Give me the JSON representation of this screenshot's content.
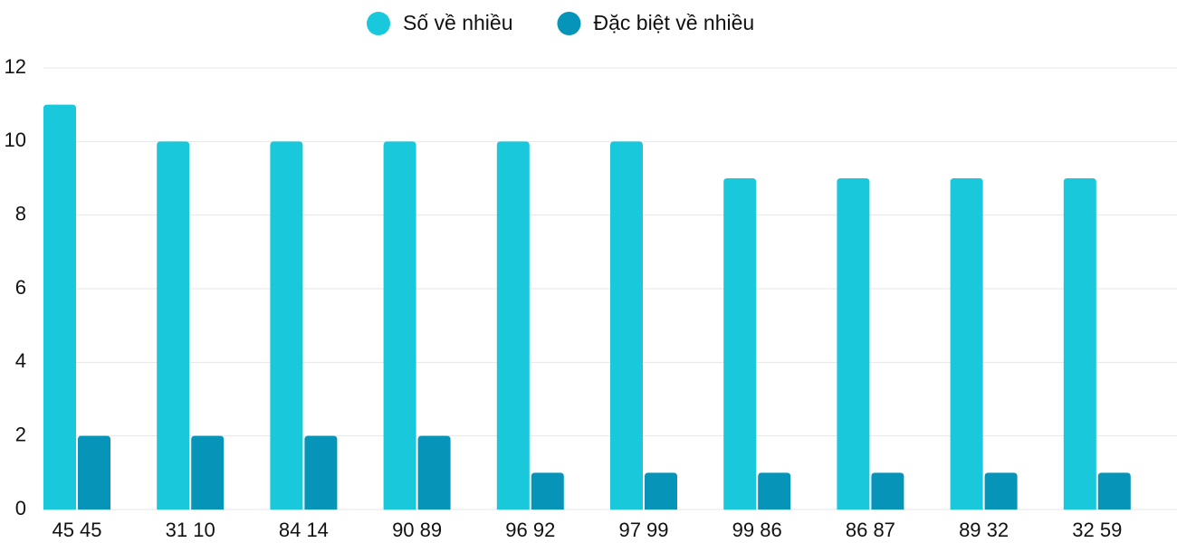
{
  "chart_data": {
    "type": "bar",
    "categories": [
      "45 45",
      "31 10",
      "84 14",
      "90 89",
      "96 92",
      "97 99",
      "99 86",
      "86 87",
      "89 32",
      "32 59"
    ],
    "series": [
      {
        "name": "Số về nhiều",
        "color": "#1ac8db",
        "values": [
          11,
          10,
          10,
          10,
          10,
          10,
          9,
          9,
          9,
          9
        ]
      },
      {
        "name": "Đặc biệt về nhiều",
        "color": "#0694b8",
        "values": [
          2,
          2,
          2,
          2,
          1,
          1,
          1,
          1,
          1,
          1
        ]
      }
    ],
    "ylim": [
      0,
      12
    ],
    "yticks": [
      0,
      2,
      4,
      6,
      8,
      10,
      12
    ],
    "grid": true,
    "legend": "top"
  }
}
